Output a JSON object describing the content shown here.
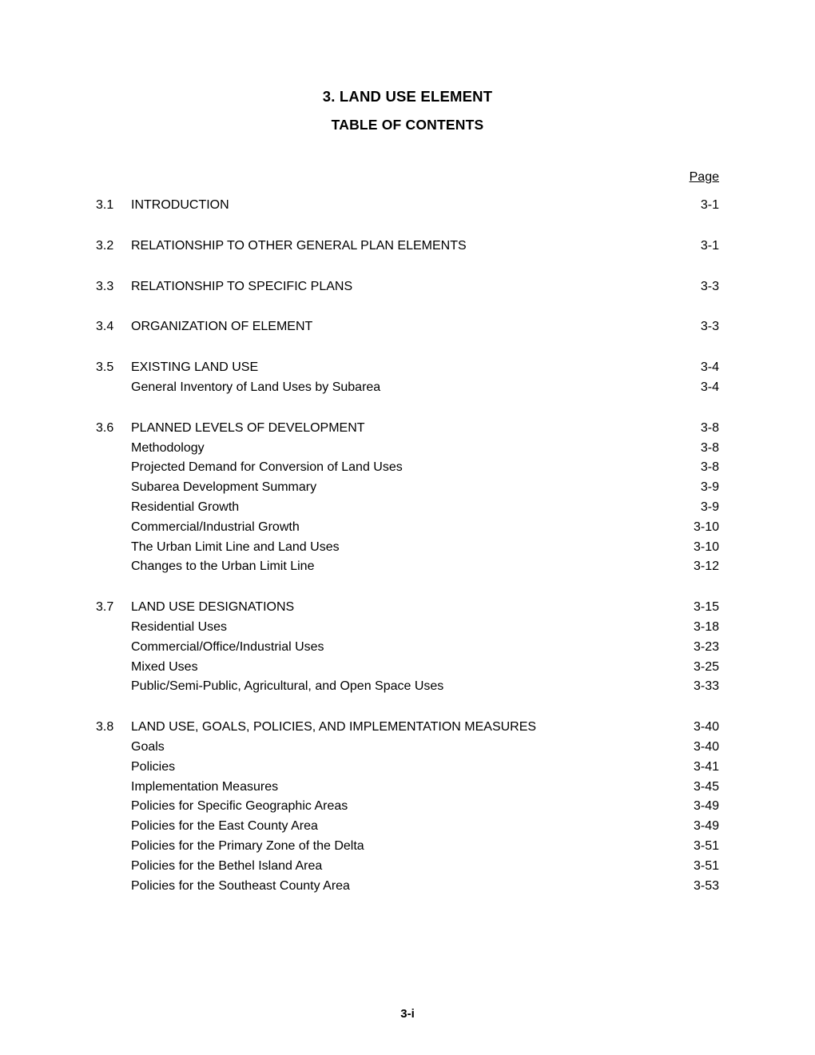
{
  "title1": "3. LAND USE ELEMENT",
  "title2": "TABLE OF CONTENTS",
  "page_header": "Page",
  "footer": "3-i",
  "sections": [
    {
      "num": "3.1",
      "rows": [
        {
          "label": "INTRODUCTION",
          "page": "3-1"
        }
      ]
    },
    {
      "num": "3.2",
      "rows": [
        {
          "label": "RELATIONSHIP TO OTHER GENERAL PLAN ELEMENTS",
          "page": "3-1"
        }
      ]
    },
    {
      "num": "3.3",
      "rows": [
        {
          "label": "RELATIONSHIP TO SPECIFIC PLANS",
          "page": "3-3"
        }
      ]
    },
    {
      "num": "3.4",
      "rows": [
        {
          "label": "ORGANIZATION OF ELEMENT",
          "page": "3-3"
        }
      ]
    },
    {
      "num": "3.5",
      "rows": [
        {
          "label": "EXISTING LAND USE",
          "page": "3-4"
        },
        {
          "label": "General Inventory of Land Uses by Subarea",
          "page": "3-4"
        }
      ]
    },
    {
      "num": "3.6",
      "rows": [
        {
          "label": "PLANNED LEVELS OF DEVELOPMENT",
          "page": "3-8"
        },
        {
          "label": "Methodology",
          "page": "3-8"
        },
        {
          "label": "Projected Demand for Conversion of Land Uses",
          "page": "3-8"
        },
        {
          "label": "Subarea Development Summary",
          "page": "3-9"
        },
        {
          "label": "Residential Growth",
          "page": "3-9"
        },
        {
          "label": "Commercial/Industrial Growth",
          "page": "3-10"
        },
        {
          "label": "The Urban Limit Line and Land Uses",
          "page": "3-10"
        },
        {
          "label": "Changes to the Urban Limit Line",
          "page": "3-12"
        }
      ]
    },
    {
      "num": "3.7",
      "rows": [
        {
          "label": "LAND USE DESIGNATIONS",
          "page": "3-15"
        },
        {
          "label": "Residential Uses",
          "page": "3-18"
        },
        {
          "label": "Commercial/Office/Industrial Uses",
          "page": "3-23"
        },
        {
          "label": "Mixed Uses",
          "page": "3-25"
        },
        {
          "label": "Public/Semi-Public, Agricultural, and Open Space Uses",
          "page": "3-33"
        }
      ]
    },
    {
      "num": "3.8",
      "rows": [
        {
          "label": "LAND USE, GOALS, POLICIES, AND IMPLEMENTATION MEASURES",
          "page": "3-40"
        },
        {
          "label": "Goals",
          "page": "3-40"
        },
        {
          "label": "Policies",
          "page": "3-41"
        },
        {
          "label": "Implementation Measures",
          "page": "3-45"
        },
        {
          "label": "Policies for Specific Geographic Areas",
          "page": "3-49"
        },
        {
          "label": "Policies for the East County Area",
          "page": "3-49"
        },
        {
          "label": "Policies for the Primary Zone of the Delta",
          "page": "3-51"
        },
        {
          "label": "Policies for the Bethel Island Area",
          "page": "3-51"
        },
        {
          "label": "Policies for the Southeast County Area",
          "page": "3-53"
        }
      ]
    }
  ]
}
